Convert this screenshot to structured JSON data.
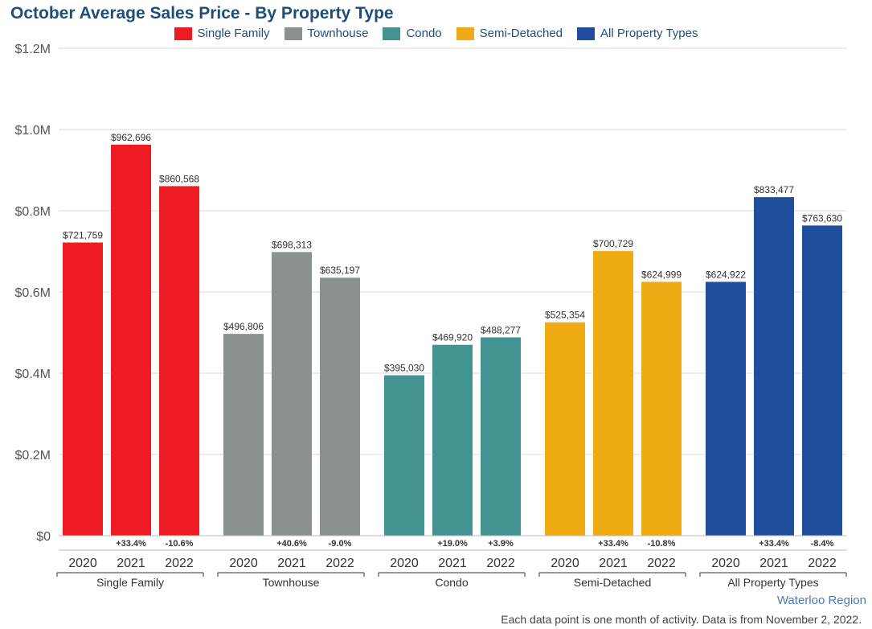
{
  "chart_data": {
    "type": "bar",
    "title": "October Average Sales Price - By Property Type",
    "ylim": [
      0,
      1200000
    ],
    "y_ticks": [
      "$0",
      "$0.2M",
      "$0.4M",
      "$0.6M",
      "$0.8M",
      "$1.0M",
      "$1.2M"
    ],
    "y_tick_values": [
      0,
      200000,
      400000,
      600000,
      800000,
      1000000,
      1200000
    ],
    "grid": true,
    "legend_position": "top",
    "groups": [
      {
        "name": "Single Family",
        "color": "#ed1c24",
        "categories": [
          "2020",
          "2021",
          "2022"
        ],
        "values": [
          721759,
          962696,
          860568
        ],
        "value_labels": [
          "$721,759",
          "$962,696",
          "$860,568"
        ],
        "change_labels": [
          "",
          "+33.4%",
          "-10.6%"
        ]
      },
      {
        "name": "Townhouse",
        "color": "#8a9190",
        "categories": [
          "2020",
          "2021",
          "2022"
        ],
        "values": [
          496806,
          698313,
          635197
        ],
        "value_labels": [
          "$496,806",
          "$698,313",
          "$635,197"
        ],
        "change_labels": [
          "",
          "+40.6%",
          "-9.0%"
        ]
      },
      {
        "name": "Condo",
        "color": "#429392",
        "categories": [
          "2020",
          "2021",
          "2022"
        ],
        "values": [
          395030,
          469920,
          488277
        ],
        "value_labels": [
          "$395,030",
          "$469,920",
          "$488,277"
        ],
        "change_labels": [
          "",
          "+19.0%",
          "+3.9%"
        ]
      },
      {
        "name": "Semi-Detached",
        "color": "#eeab14",
        "categories": [
          "2020",
          "2021",
          "2022"
        ],
        "values": [
          525354,
          700729,
          624999
        ],
        "value_labels": [
          "$525,354",
          "$700,729",
          "$624,999"
        ],
        "change_labels": [
          "",
          "+33.4%",
          "-10.8%"
        ]
      },
      {
        "name": "All Property Types",
        "color": "#1f4e9e",
        "categories": [
          "2020",
          "2021",
          "2022"
        ],
        "values": [
          624922,
          833477,
          763630
        ],
        "value_labels": [
          "$624,922",
          "$833,477",
          "$763,630"
        ],
        "change_labels": [
          "",
          "+33.4%",
          "-8.4%"
        ]
      }
    ]
  },
  "source_label": "Waterloo Region",
  "footnote": "Each data point is one month of activity. Data is from November 2, 2022."
}
